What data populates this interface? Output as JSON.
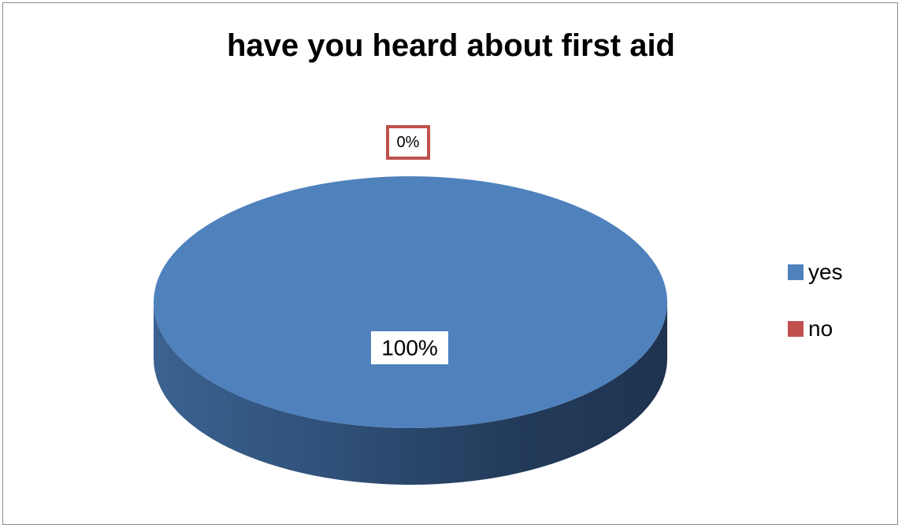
{
  "chart_data": {
    "type": "pie",
    "title": "have you heard about first aid",
    "categories": [
      "yes",
      "no"
    ],
    "values": [
      100,
      0
    ],
    "data_labels": [
      "100%",
      "0%"
    ],
    "colors": [
      "#4f81bd",
      "#c0504d"
    ],
    "legend_position": "right",
    "style": "3d"
  }
}
